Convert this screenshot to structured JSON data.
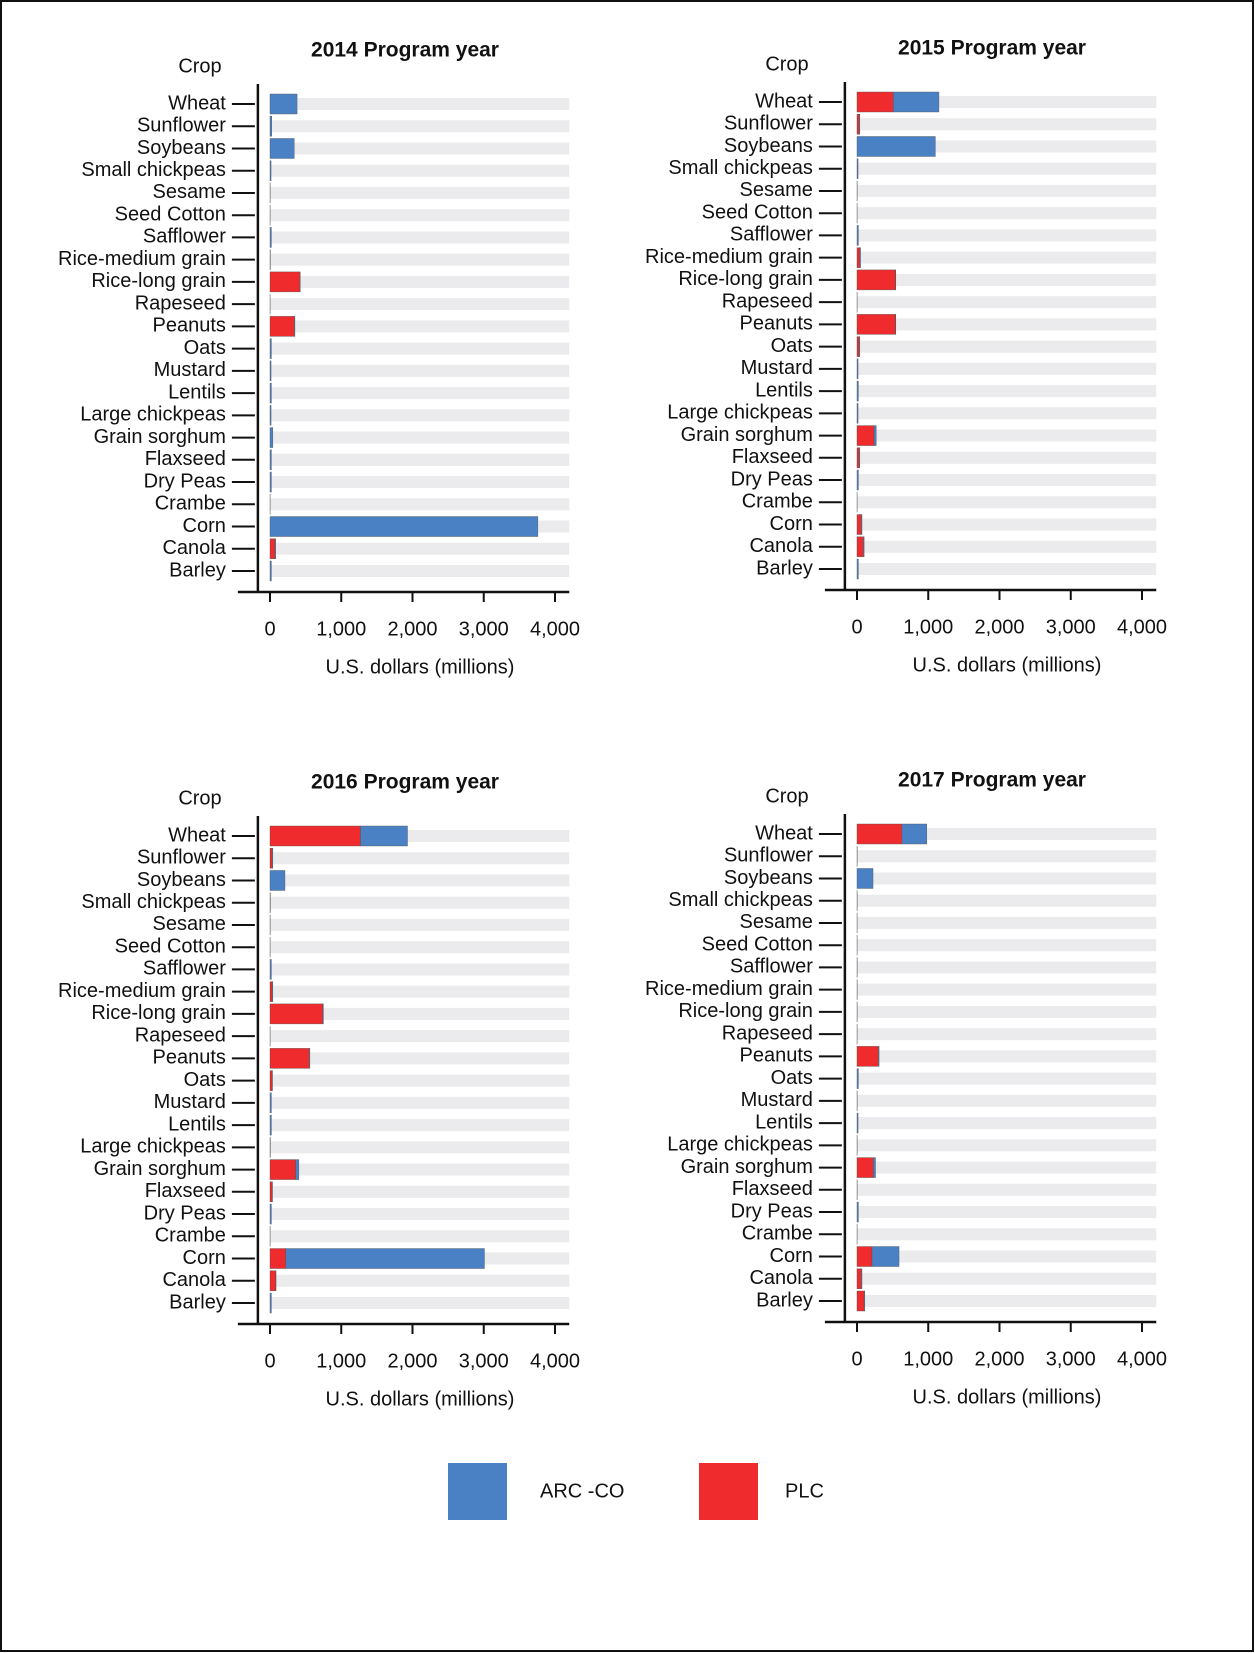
{
  "chart_data": [
    {
      "type": "bar",
      "orientation": "horizontal",
      "stacked": true,
      "title": "2014 Program year",
      "ylabel": "Crop",
      "xlabel": "U.S. dollars (millions)",
      "categories": [
        "Wheat",
        "Sunflower",
        "Soybeans",
        "Small chickpeas",
        "Sesame",
        "Seed Cotton",
        "Safflower",
        "Rice-medium grain",
        "Rice-long grain",
        "Rapeseed",
        "Peanuts",
        "Oats",
        "Mustard",
        "Lentils",
        "Large chickpeas",
        "Grain sorghum",
        "Flaxseed",
        "Dry Peas",
        "Crambe",
        "Corn",
        "Canola",
        "Barley"
      ],
      "series": [
        {
          "name": "ARC -CO",
          "color": "#4a80c4",
          "values": [
            380,
            25,
            340,
            15,
            3,
            2,
            20,
            5,
            5,
            2,
            10,
            20,
            15,
            20,
            15,
            40,
            20,
            20,
            2,
            3760,
            10,
            20
          ]
        },
        {
          "name": "PLC",
          "color": "#ef2b2d",
          "values": [
            0,
            0,
            0,
            0,
            0,
            0,
            0,
            0,
            420,
            0,
            340,
            0,
            0,
            0,
            0,
            0,
            0,
            0,
            0,
            0,
            70,
            0
          ]
        }
      ],
      "xlim": [
        -170,
        4200
      ],
      "xticks": [
        0,
        {
          "value": 1000,
          "label": "1,000"
        },
        {
          "value": 2000,
          "label": "2,000"
        },
        {
          "value": 3000,
          "label": "3,000"
        },
        {
          "value": 4000,
          "label": "4,000"
        }
      ]
    },
    {
      "type": "bar",
      "orientation": "horizontal",
      "stacked": true,
      "title": "2015 Program year",
      "ylabel": "Crop",
      "xlabel": "U.S. dollars (millions)",
      "categories": [
        "Wheat",
        "Sunflower",
        "Soybeans",
        "Small chickpeas",
        "Sesame",
        "Seed Cotton",
        "Safflower",
        "Rice-medium grain",
        "Rice-long grain",
        "Rapeseed",
        "Peanuts",
        "Oats",
        "Mustard",
        "Lentils",
        "Large chickpeas",
        "Grain sorghum",
        "Flaxseed",
        "Dry Peas",
        "Crambe",
        "Corn",
        "Canola",
        "Barley"
      ],
      "series": [
        {
          "name": "ARC -CO",
          "color": "#4a80c4",
          "values": [
            640,
            10,
            1100,
            15,
            3,
            2,
            20,
            10,
            5,
            2,
            5,
            10,
            15,
            20,
            15,
            30,
            10,
            20,
            2,
            10,
            10,
            20
          ]
        },
        {
          "name": "PLC",
          "color": "#ef2b2d",
          "values": [
            510,
            30,
            0,
            0,
            0,
            0,
            0,
            40,
            540,
            0,
            540,
            30,
            0,
            0,
            0,
            240,
            30,
            0,
            0,
            60,
            90,
            0
          ]
        }
      ],
      "xlim": [
        -170,
        4200
      ],
      "xticks": [
        0,
        {
          "value": 1000,
          "label": "1,000"
        },
        {
          "value": 2000,
          "label": "2,000"
        },
        {
          "value": 3000,
          "label": "3,000"
        },
        {
          "value": 4000,
          "label": "4,000"
        }
      ]
    },
    {
      "type": "bar",
      "orientation": "horizontal",
      "stacked": true,
      "title": "2016 Program year",
      "ylabel": "Crop",
      "xlabel": "U.S. dollars (millions)",
      "categories": [
        "Wheat",
        "Sunflower",
        "Soybeans",
        "Small chickpeas",
        "Sesame",
        "Seed Cotton",
        "Safflower",
        "Rice-medium grain",
        "Rice-long grain",
        "Rapeseed",
        "Peanuts",
        "Oats",
        "Mustard",
        "Lentils",
        "Large chickpeas",
        "Grain sorghum",
        "Flaxseed",
        "Dry Peas",
        "Crambe",
        "Corn",
        "Canola",
        "Barley"
      ],
      "series": [
        {
          "name": "ARC -CO",
          "color": "#4a80c4",
          "values": [
            660,
            10,
            210,
            5,
            3,
            2,
            20,
            10,
            10,
            2,
            10,
            5,
            20,
            20,
            5,
            45,
            5,
            20,
            2,
            2790,
            5,
            20
          ]
        },
        {
          "name": "PLC",
          "color": "#ef2b2d",
          "values": [
            1270,
            30,
            0,
            0,
            0,
            0,
            0,
            30,
            740,
            0,
            550,
            30,
            0,
            0,
            0,
            360,
            30,
            0,
            0,
            220,
            80,
            0
          ]
        }
      ],
      "xlim": [
        -170,
        4200
      ],
      "xticks": [
        0,
        {
          "value": 1000,
          "label": "1,000"
        },
        {
          "value": 2000,
          "label": "2,000"
        },
        {
          "value": 3000,
          "label": "3,000"
        },
        {
          "value": 4000,
          "label": "4,000"
        }
      ]
    },
    {
      "type": "bar",
      "orientation": "horizontal",
      "stacked": true,
      "title": "2017 Program year",
      "ylabel": "Crop",
      "xlabel": "U.S. dollars (millions)",
      "categories": [
        "Wheat",
        "Sunflower",
        "Soybeans",
        "Small chickpeas",
        "Sesame",
        "Seed Cotton",
        "Safflower",
        "Rice-medium grain",
        "Rice-long grain",
        "Rapeseed",
        "Peanuts",
        "Oats",
        "Mustard",
        "Lentils",
        "Large chickpeas",
        "Grain sorghum",
        "Flaxseed",
        "Dry Peas",
        "Crambe",
        "Corn",
        "Canola",
        "Barley"
      ],
      "series": [
        {
          "name": "ARC -CO",
          "color": "#4a80c4",
          "values": [
            350,
            3,
            225,
            3,
            2,
            2,
            3,
            3,
            3,
            2,
            10,
            20,
            3,
            15,
            3,
            30,
            3,
            20,
            2,
            380,
            10,
            10
          ]
        },
        {
          "name": "PLC",
          "color": "#ef2b2d",
          "values": [
            630,
            0,
            0,
            0,
            0,
            0,
            0,
            0,
            0,
            0,
            300,
            0,
            0,
            0,
            0,
            230,
            0,
            0,
            0,
            210,
            60,
            100
          ]
        }
      ],
      "xlim": [
        -170,
        4200
      ],
      "xticks": [
        0,
        {
          "value": 1000,
          "label": "1,000"
        },
        {
          "value": 2000,
          "label": "2,000"
        },
        {
          "value": 3000,
          "label": "3,000"
        },
        {
          "value": 4000,
          "label": "4,000"
        }
      ]
    }
  ]
}
